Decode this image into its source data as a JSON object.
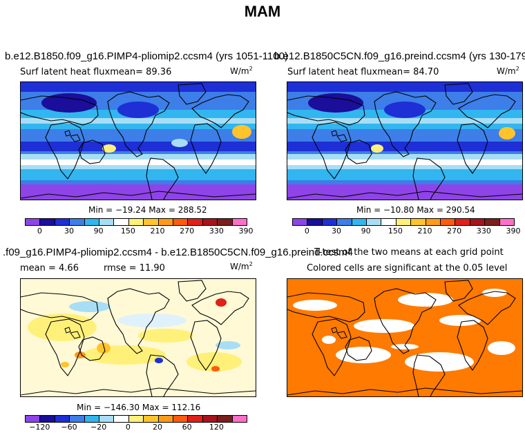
{
  "page": {
    "season_title": "MAM"
  },
  "panels": {
    "p1": {
      "title": "b.e12.B1850.f09_g16.PIMP4-pliomip2.ccsm4 (yrs 1051-1100)",
      "subtitle": "Surf latent heat fluxmean=  89.36",
      "units": "W/m",
      "units_sup": "2",
      "minmax": "Min = −19.24 Max = 288.52"
    },
    "p2": {
      "title": "b.e12.B1850C5CN.f09_g16.preind.ccsm4 (yrs 130-179)",
      "subtitle": "Surf latent heat fluxmean=  84.70",
      "units": "W/m",
      "units_sup": "2",
      "minmax": "Min = −10.80 Max = 290.54"
    },
    "p3": {
      "title": ".f09_g16.PIMP4-pliomip2.ccsm4 - b.e12.B1850C5CN.f09_g16.preind.ccsm4",
      "mean_text": "mean =   4.66",
      "rmse_text": "rmse =  11.90",
      "units": "W/m",
      "units_sup": "2",
      "minmax": "Min = −146.30 Max = 112.16"
    },
    "p4": {
      "title": "T-test of the two means at each grid point",
      "subtitle": "Colored cells are significant at the 0.05 level"
    }
  },
  "colorbars": {
    "abs": {
      "labels": [
        "0",
        "30",
        "90",
        "150",
        "210",
        "270",
        "330",
        "390"
      ],
      "colors": [
        "#8e44e8",
        "#1a0e9a",
        "#1e2fd6",
        "#3d7ee8",
        "#31b6f0",
        "#a8def5",
        "#ffffff",
        "#fff07a",
        "#ffc42b",
        "#ff9a1a",
        "#ff5a0d",
        "#e0201a",
        "#a8141c",
        "#7a1e1e",
        "#ff6ec8"
      ]
    },
    "diff": {
      "labels": [
        "−120",
        "−60",
        "−20",
        "0",
        "20",
        "60",
        "120"
      ],
      "colors": [
        "#8e44e8",
        "#1a0e9a",
        "#1e2fd6",
        "#3d7ee8",
        "#31b6f0",
        "#a8def5",
        "#ffffff",
        "#fff07a",
        "#ffc42b",
        "#ff9a1a",
        "#ff5a0d",
        "#e0201a",
        "#a8141c",
        "#7a1e1e",
        "#ff6ec8"
      ]
    }
  },
  "chart_data": [
    {
      "type": "heatmap",
      "title": "b.e12.B1850.f09_g16.PIMP4-pliomip2.ccsm4 (yrs 1051-1100)",
      "variable": "Surf latent heat flux",
      "units": "W/m2",
      "mean": 89.36,
      "min": -19.24,
      "max": 288.52,
      "colorbar_ticks": [
        0,
        30,
        90,
        150,
        210,
        270,
        330,
        390
      ]
    },
    {
      "type": "heatmap",
      "title": "b.e12.B1850C5CN.f09_g16.preind.ccsm4 (yrs 130-179)",
      "variable": "Surf latent heat flux",
      "units": "W/m2",
      "mean": 84.7,
      "min": -10.8,
      "max": 290.54,
      "colorbar_ticks": [
        0,
        30,
        90,
        150,
        210,
        270,
        330,
        390
      ]
    },
    {
      "type": "heatmap",
      "title": ".f09_g16.PIMP4-pliomip2.ccsm4 - b.e12.B1850C5CN.f09_g16.preind.ccsm4",
      "units": "W/m2",
      "mean": 4.66,
      "rmse": 11.9,
      "min": -146.3,
      "max": 112.16,
      "colorbar_ticks": [
        -120,
        -60,
        -20,
        0,
        20,
        60,
        120
      ]
    },
    {
      "type": "heatmap",
      "title": "T-test of the two means at each grid point",
      "note": "Colored cells are significant at the 0.05 level",
      "significance_level": 0.05
    }
  ]
}
